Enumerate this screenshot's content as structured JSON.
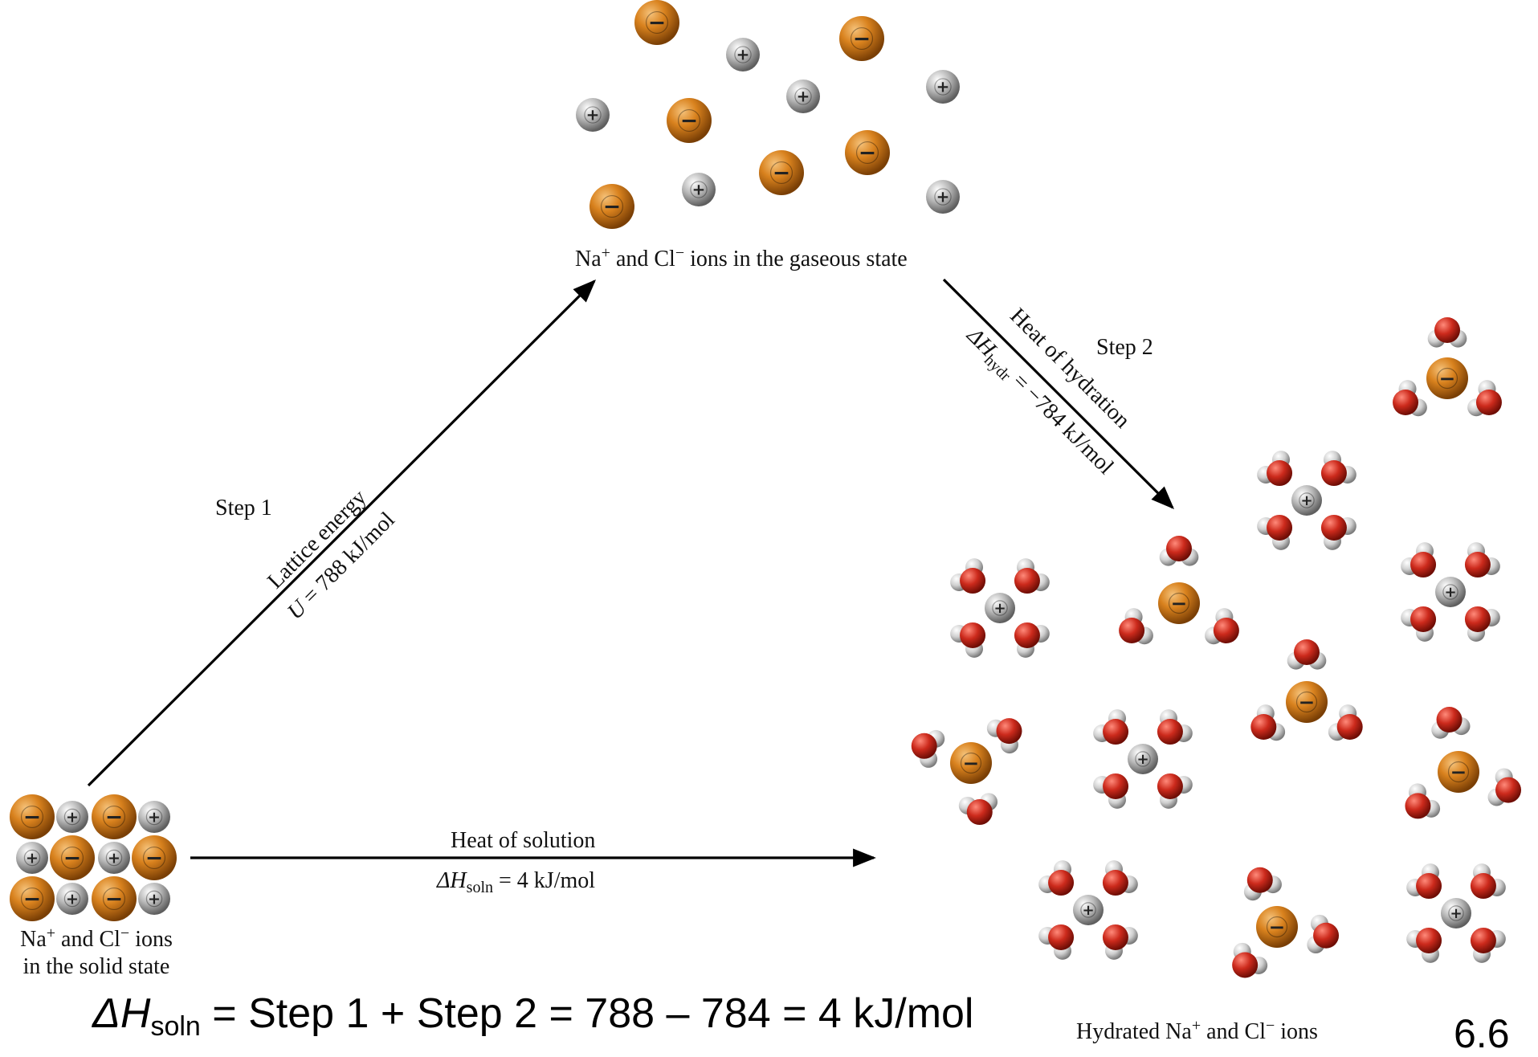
{
  "labels": {
    "gaseous": {
      "pre": "Na",
      "sup1": "+",
      "mid": " and Cl",
      "sup2": "−",
      "post": " ions in the gaseous state"
    },
    "solid_line1": {
      "pre": "Na",
      "sup1": "+",
      "mid": " and Cl",
      "sup2": "−",
      "post": " ions"
    },
    "solid_line2": "in the solid state",
    "hydrated": {
      "pre": "Hydrated Na",
      "sup1": "+",
      "mid": " and Cl",
      "sup2": "−",
      "post": " ions"
    },
    "step1": "Step 1",
    "step2": "Step 2",
    "lattice_title": "Lattice energy",
    "lattice_value": {
      "sym": "U",
      "rest": " = 788 kJ/mol"
    },
    "hydration_title": "Heat of hydration",
    "hydration_value": {
      "sym": "ΔH",
      "sub": "hydr",
      "rest": " = −784 kJ/mol"
    },
    "solution_title": "Heat of solution",
    "solution_value": {
      "sym": "ΔH",
      "sub": "soln",
      "rest": " = 4 kJ/mol"
    }
  },
  "equation": {
    "sym": "ΔH",
    "sub": "soln",
    "rest": " = Step 1 + Step 2 = 788 – 784 = 4 kJ/mol"
  },
  "page_number": "6.6",
  "colors": {
    "chloride": "#d9821e",
    "sodium": "#b7b7b7",
    "oxygen": "#cc2a1c",
    "hydrogen": "#cfcfcf",
    "arrow": "#000000"
  },
  "ion_signs": {
    "chloride": "−",
    "sodium": "+"
  }
}
